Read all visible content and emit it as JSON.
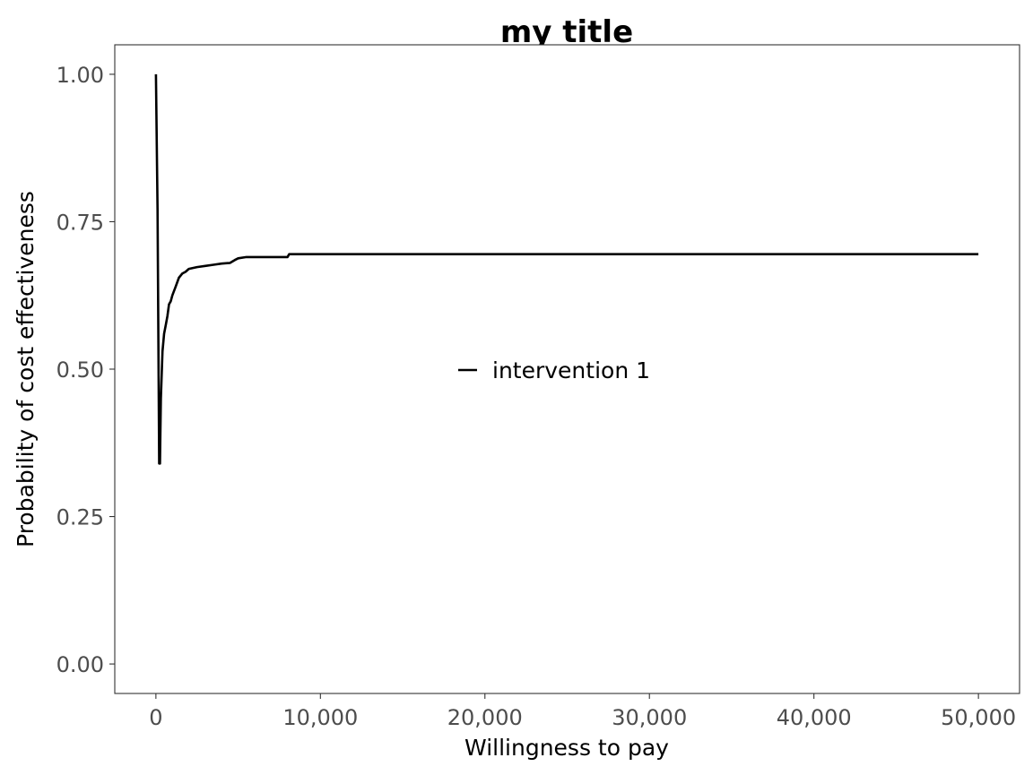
{
  "chart_data": {
    "type": "line",
    "title": "my title",
    "xlabel": "Willingness to pay",
    "ylabel": "Probability of cost effectiveness",
    "xlim": [
      -2500,
      52500
    ],
    "ylim": [
      -0.05,
      1.05
    ],
    "x_ticks": [
      0,
      10000,
      20000,
      30000,
      40000,
      50000
    ],
    "x_tick_labels": [
      "0",
      "10,000",
      "20,000",
      "30,000",
      "40,000",
      "50,000"
    ],
    "y_ticks": [
      0,
      0.25,
      0.5,
      0.75,
      1.0
    ],
    "y_tick_labels": [
      "0.00",
      "0.25",
      "0.50",
      "0.75",
      "1.00"
    ],
    "grid": false,
    "legend_position": "center",
    "series": [
      {
        "name": "intervention 1",
        "color": "#000000",
        "x": [
          0,
          100,
          200,
          250,
          300,
          400,
          500,
          600,
          700,
          800,
          900,
          1000,
          1200,
          1400,
          1600,
          1800,
          2000,
          2500,
          3000,
          3500,
          4000,
          4500,
          4800,
          5000,
          5500,
          6000,
          7000,
          8000,
          8100,
          10000,
          20000,
          30000,
          40000,
          50000
        ],
        "values": [
          1.0,
          0.77,
          0.34,
          0.34,
          0.45,
          0.53,
          0.56,
          0.575,
          0.59,
          0.61,
          0.615,
          0.625,
          0.64,
          0.655,
          0.662,
          0.665,
          0.67,
          0.673,
          0.675,
          0.677,
          0.679,
          0.68,
          0.685,
          0.688,
          0.69,
          0.69,
          0.69,
          0.69,
          0.695,
          0.695,
          0.695,
          0.695,
          0.695,
          0.695
        ]
      }
    ]
  }
}
